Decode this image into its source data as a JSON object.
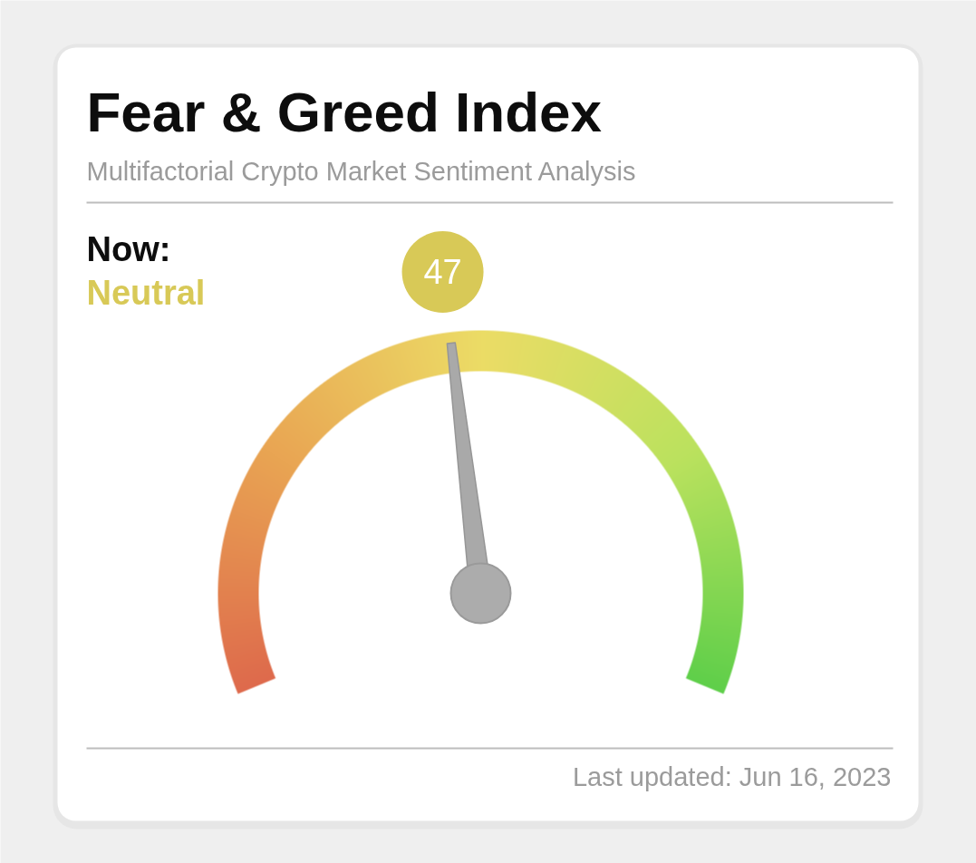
{
  "chart_data": {
    "type": "other",
    "title": "Fear & Greed Index",
    "subtitle": "Multifactorial Crypto Market Sentiment Analysis",
    "values": [
      47
    ],
    "color": "#d8c957",
    "data_labels": true,
    "annotations": [
      "Now:",
      "Neutral",
      "Last updated: Jun 16, 2023"
    ]
  }
}
